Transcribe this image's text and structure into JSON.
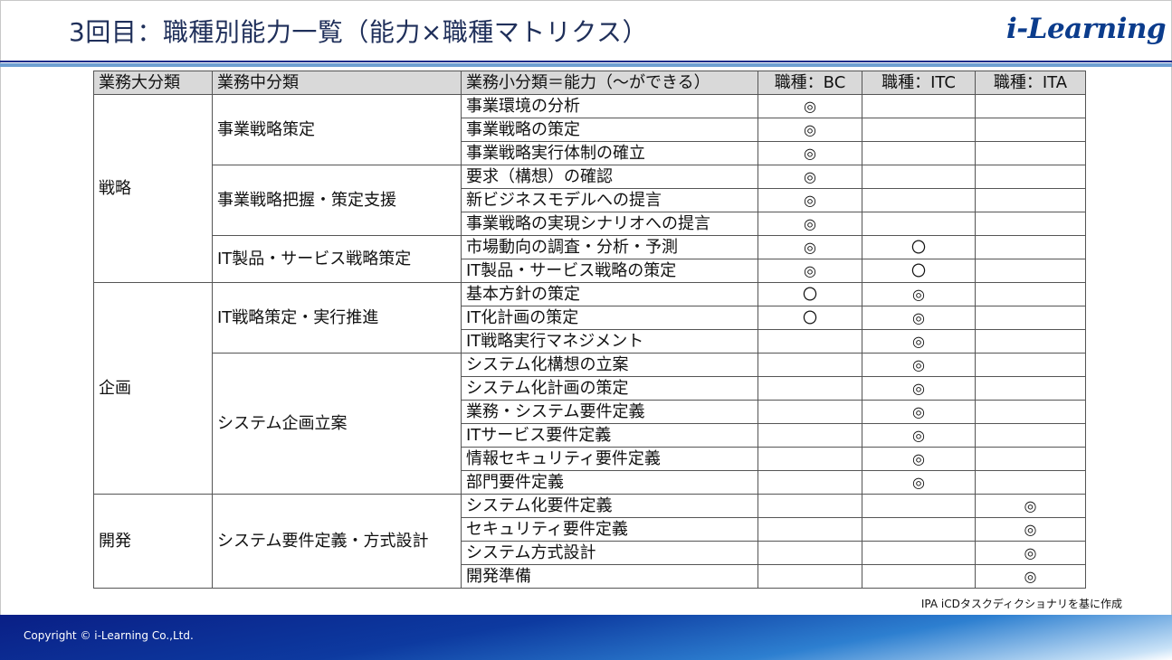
{
  "header": {
    "title": "3回目：職種別能力一覧（能力×職種マトリクス）",
    "logo_text": "i-Learning"
  },
  "table": {
    "columns": [
      "業務大分類",
      "業務中分類",
      "業務小分類＝能力（～ができる）",
      "職種：BC",
      "職種：ITC",
      "職種：ITA"
    ],
    "groups": [
      {
        "major": "戦略",
        "subs": [
          {
            "middle": "事業戦略策定",
            "rows": [
              {
                "ability": "事業環境の分析",
                "bc": "◎",
                "itc": "",
                "ita": ""
              },
              {
                "ability": "事業戦略の策定",
                "bc": "◎",
                "itc": "",
                "ita": ""
              },
              {
                "ability": "事業戦略実行体制の確立",
                "bc": "◎",
                "itc": "",
                "ita": ""
              }
            ]
          },
          {
            "middle": "事業戦略把握・策定支援",
            "rows": [
              {
                "ability": "要求（構想）の確認",
                "bc": "◎",
                "itc": "",
                "ita": ""
              },
              {
                "ability": "新ビジネスモデルへの提言",
                "bc": "◎",
                "itc": "",
                "ita": ""
              },
              {
                "ability": "事業戦略の実現シナリオへの提言",
                "bc": "◎",
                "itc": "",
                "ita": ""
              }
            ]
          },
          {
            "middle": "IT製品・サービス戦略策定",
            "rows": [
              {
                "ability": "市場動向の調査・分析・予測",
                "bc": "◎",
                "itc": "〇",
                "ita": ""
              },
              {
                "ability": "IT製品・サービス戦略の策定",
                "bc": "◎",
                "itc": "〇",
                "ita": ""
              }
            ]
          }
        ]
      },
      {
        "major": "企画",
        "subs": [
          {
            "middle": "IT戦略策定・実行推進",
            "rows": [
              {
                "ability": "基本方針の策定",
                "bc": "〇",
                "itc": "◎",
                "ita": ""
              },
              {
                "ability": "IT化計画の策定",
                "bc": "〇",
                "itc": "◎",
                "ita": ""
              },
              {
                "ability": "IT戦略実行マネジメント",
                "bc": "",
                "itc": "◎",
                "ita": ""
              }
            ]
          },
          {
            "middle": "システム企画立案",
            "rows": [
              {
                "ability": "システム化構想の立案",
                "bc": "",
                "itc": "◎",
                "ita": ""
              },
              {
                "ability": "システム化計画の策定",
                "bc": "",
                "itc": "◎",
                "ita": ""
              },
              {
                "ability": "業務・システム要件定義",
                "bc": "",
                "itc": "◎",
                "ita": ""
              },
              {
                "ability": "ITサービス要件定義",
                "bc": "",
                "itc": "◎",
                "ita": ""
              },
              {
                "ability": "情報セキュリティ要件定義",
                "bc": "",
                "itc": "◎",
                "ita": ""
              },
              {
                "ability": "部門要件定義",
                "bc": "",
                "itc": "◎",
                "ita": ""
              }
            ]
          }
        ]
      },
      {
        "major": "開発",
        "subs": [
          {
            "middle": "システム要件定義・方式設計",
            "rows": [
              {
                "ability": "システム化要件定義",
                "bc": "",
                "itc": "",
                "ita": "◎"
              },
              {
                "ability": "セキュリティ要件定義",
                "bc": "",
                "itc": "",
                "ita": "◎"
              },
              {
                "ability": "システム方式設計",
                "bc": "",
                "itc": "",
                "ita": "◎"
              },
              {
                "ability": "開発準備",
                "bc": "",
                "itc": "",
                "ita": "◎"
              }
            ]
          }
        ]
      }
    ]
  },
  "source_note": "IPA iCDタスクディクショナリを基に作成",
  "footer": {
    "copyright": "Copyright © i-Learning Co.,Ltd."
  },
  "colors": {
    "title": "#1f2f5a",
    "logo": "#0b3c8c",
    "header_bg": "#d9d9d9",
    "footer": "#0a1f86"
  }
}
